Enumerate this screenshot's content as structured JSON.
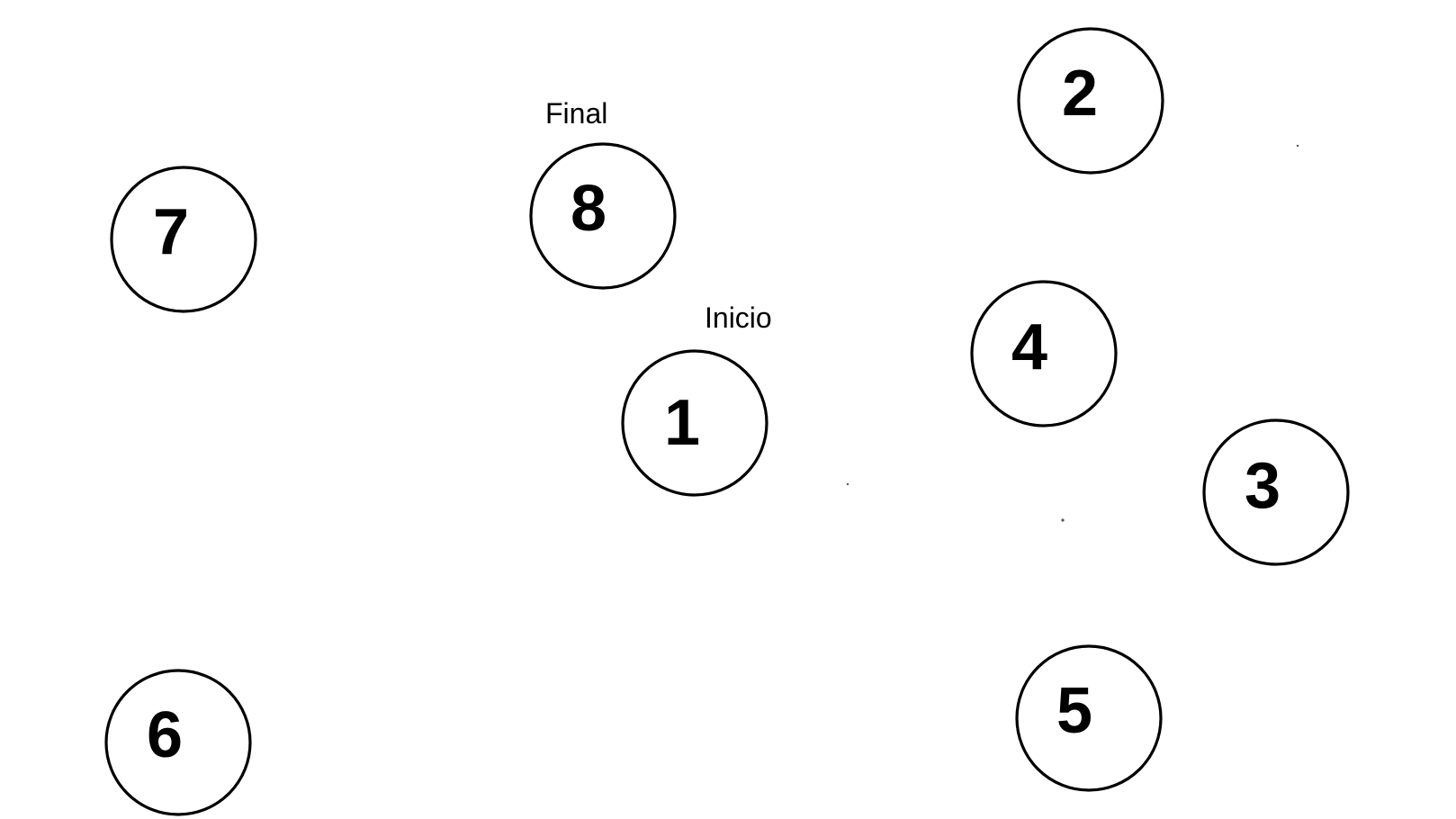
{
  "diagram": {
    "nodes": [
      {
        "label": "1"
      },
      {
        "label": "2"
      },
      {
        "label": "3"
      },
      {
        "label": "4"
      },
      {
        "label": "5"
      },
      {
        "label": "6"
      },
      {
        "label": "7"
      },
      {
        "label": "8"
      }
    ],
    "annotations": {
      "start": "Inicio",
      "end": "Final"
    }
  }
}
